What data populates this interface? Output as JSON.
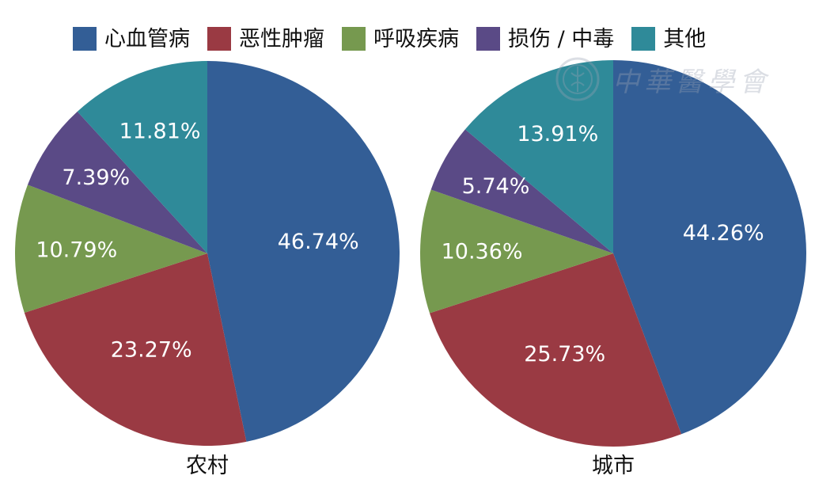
{
  "legend": [
    {
      "label": "心血管病",
      "color": "#335e96"
    },
    {
      "label": "恶性肿瘤",
      "color": "#9a3a43"
    },
    {
      "label": "呼吸疾病",
      "color": "#76994f"
    },
    {
      "label": "损伤 / 中毒",
      "color": "#5a4a86"
    },
    {
      "label": "其他",
      "color": "#2f8a99"
    }
  ],
  "watermark": {
    "text": "中華醫學會",
    "icon": "medical-association-logo"
  },
  "chart_data": [
    {
      "type": "pie",
      "title": "",
      "caption": "农村",
      "categories": [
        "心血管病",
        "恶性肿瘤",
        "呼吸疾病",
        "损伤 / 中毒",
        "其他"
      ],
      "values": [
        46.74,
        23.27,
        10.79,
        7.39,
        11.81
      ],
      "labels": [
        "46.74%",
        "23.27%",
        "10.79%",
        "7.39%",
        "11.81%"
      ],
      "colors": [
        "#335e96",
        "#9a3a43",
        "#76994f",
        "#5a4a86",
        "#2f8a99"
      ],
      "start": "12 o'clock",
      "direction": "clockwise",
      "legend": "top"
    },
    {
      "type": "pie",
      "title": "",
      "caption": "城市",
      "categories": [
        "心血管病",
        "恶性肿瘤",
        "呼吸疾病",
        "损伤 / 中毒",
        "其他"
      ],
      "values": [
        44.26,
        25.73,
        10.36,
        5.74,
        13.91
      ],
      "labels": [
        "44.26%",
        "25.73%",
        "10.36%",
        "5.74%",
        "13.91%"
      ],
      "colors": [
        "#335e96",
        "#9a3a43",
        "#76994f",
        "#5a4a86",
        "#2f8a99"
      ],
      "start": "12 o'clock",
      "direction": "clockwise",
      "legend": "top"
    }
  ]
}
